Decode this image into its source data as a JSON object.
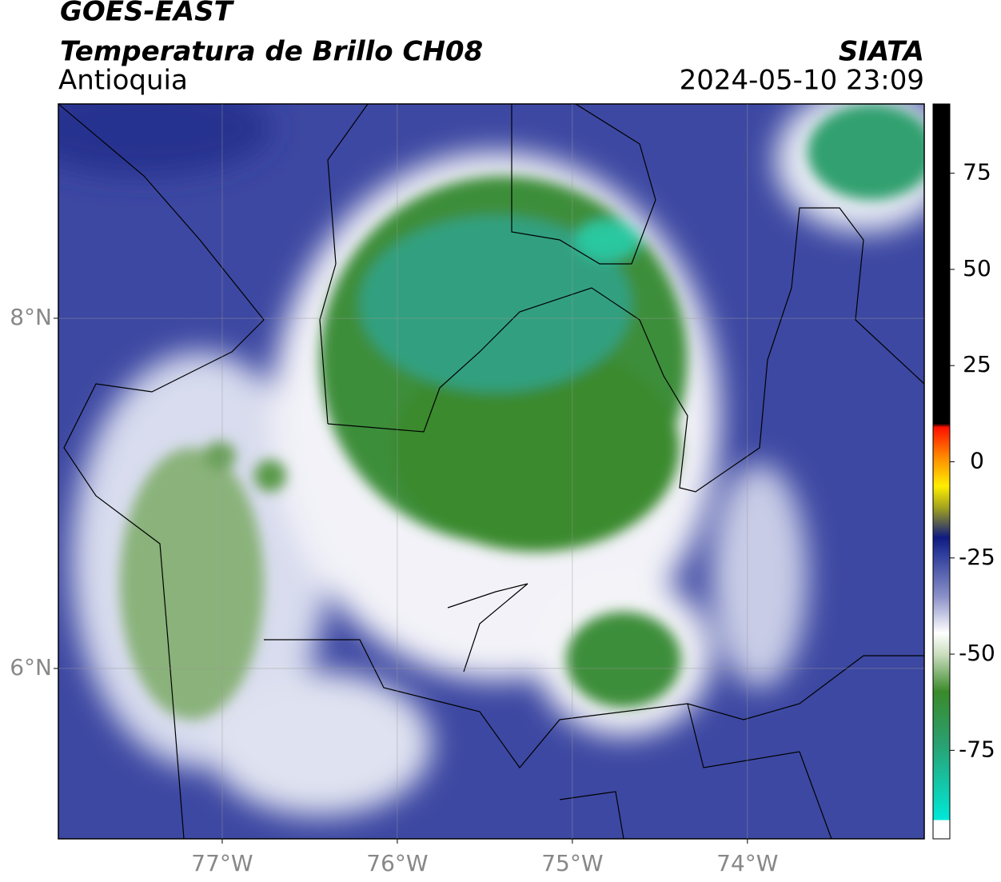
{
  "chart_data": {
    "type": "map",
    "title": "GOES-EAST",
    "subtitle": "Temperatura de Brillo CH08",
    "region": "Antioquia",
    "source": "SIATA",
    "datetime": "2024-05-10 23:09",
    "xlim": [
      -77.936,
      -72.99
    ],
    "ylim": [
      5.027,
      9.224
    ],
    "xticks": [
      {
        "value": -77,
        "label": "77°W"
      },
      {
        "value": -76,
        "label": "76°W"
      },
      {
        "value": -75,
        "label": "75°W"
      },
      {
        "value": -74,
        "label": "74°W"
      }
    ],
    "yticks": [
      {
        "value": 6,
        "label": "6°N"
      },
      {
        "value": 8,
        "label": "8°N"
      }
    ],
    "grid": true,
    "clim": [
      -98,
      93
    ],
    "cticks": [
      75,
      50,
      25,
      0,
      -25,
      -50,
      -75
    ]
  }
}
